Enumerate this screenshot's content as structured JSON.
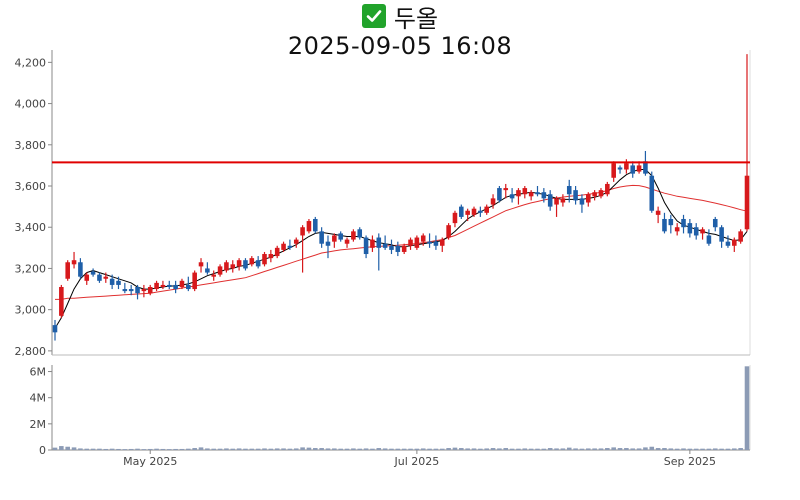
{
  "title": {
    "name": "두올",
    "timestamp": "2025-09-05 16:08",
    "icon": "check-mark-icon"
  },
  "colors": {
    "up": "#d7191c",
    "down": "#1f5fa8",
    "ma_short": "#000000",
    "ma_long": "#e03030",
    "resistance_line": "#e00000",
    "volume": "#8c9bb5"
  },
  "chart_data": {
    "type": "candlestick",
    "price_axis": {
      "ylim": [
        2780,
        4260
      ],
      "ticks": [
        "2,800",
        "3,000",
        "3,200",
        "3,400",
        "3,600",
        "3,800",
        "4,000",
        "4,200"
      ],
      "tick_values": [
        2800,
        3000,
        3200,
        3400,
        3600,
        3800,
        4000,
        4200
      ]
    },
    "volume_axis": {
      "ylim": [
        0,
        6500000
      ],
      "ticks": [
        "0",
        "2M",
        "4M",
        "6M"
      ],
      "tick_values": [
        0,
        2000000,
        4000000,
        6000000
      ]
    },
    "x_ticks": [
      {
        "label": "May 2025",
        "index": 15
      },
      {
        "label": "Jul 2025",
        "index": 57
      },
      {
        "label": "Sep 2025",
        "index": 100
      }
    ],
    "horizontal_line": 3715,
    "candles": [
      [
        2925,
        2950,
        2850,
        2890
      ],
      [
        2970,
        3120,
        2960,
        3110
      ],
      [
        3150,
        3240,
        3140,
        3230
      ],
      [
        3220,
        3280,
        3200,
        3240
      ],
      [
        3230,
        3250,
        3150,
        3160
      ],
      [
        3140,
        3180,
        3120,
        3170
      ],
      [
        3185,
        3200,
        3160,
        3170
      ],
      [
        3170,
        3180,
        3130,
        3140
      ],
      [
        3150,
        3180,
        3130,
        3160
      ],
      [
        3150,
        3170,
        3100,
        3120
      ],
      [
        3140,
        3160,
        3100,
        3120
      ],
      [
        3100,
        3130,
        3080,
        3090
      ],
      [
        3100,
        3120,
        3070,
        3090
      ],
      [
        3110,
        3120,
        3050,
        3080
      ],
      [
        3090,
        3120,
        3060,
        3100
      ],
      [
        3080,
        3120,
        3070,
        3110
      ],
      [
        3100,
        3140,
        3090,
        3130
      ],
      [
        3110,
        3140,
        3100,
        3120
      ],
      [
        3120,
        3140,
        3100,
        3110
      ],
      [
        3120,
        3140,
        3080,
        3100
      ],
      [
        3110,
        3150,
        3100,
        3140
      ],
      [
        3120,
        3160,
        3090,
        3100
      ],
      [
        3100,
        3190,
        3090,
        3180
      ],
      [
        3210,
        3250,
        3180,
        3230
      ],
      [
        3200,
        3230,
        3170,
        3180
      ],
      [
        3160,
        3190,
        3140,
        3170
      ],
      [
        3170,
        3220,
        3160,
        3210
      ],
      [
        3190,
        3240,
        3180,
        3230
      ],
      [
        3200,
        3240,
        3180,
        3220
      ],
      [
        3210,
        3250,
        3190,
        3240
      ],
      [
        3240,
        3250,
        3190,
        3200
      ],
      [
        3220,
        3260,
        3210,
        3250
      ],
      [
        3240,
        3260,
        3200,
        3210
      ],
      [
        3220,
        3280,
        3210,
        3270
      ],
      [
        3250,
        3290,
        3230,
        3270
      ],
      [
        3260,
        3310,
        3250,
        3300
      ],
      [
        3290,
        3330,
        3280,
        3320
      ],
      [
        3310,
        3340,
        3290,
        3300
      ],
      [
        3320,
        3350,
        3300,
        3340
      ],
      [
        3360,
        3410,
        3180,
        3400
      ],
      [
        3380,
        3440,
        3370,
        3430
      ],
      [
        3440,
        3450,
        3370,
        3380
      ],
      [
        3380,
        3400,
        3300,
        3320
      ],
      [
        3330,
        3360,
        3250,
        3310
      ],
      [
        3330,
        3370,
        3300,
        3360
      ],
      [
        3370,
        3380,
        3330,
        3340
      ],
      [
        3320,
        3350,
        3300,
        3340
      ],
      [
        3340,
        3390,
        3330,
        3380
      ],
      [
        3390,
        3400,
        3340,
        3350
      ],
      [
        3350,
        3360,
        3250,
        3270
      ],
      [
        3300,
        3360,
        3280,
        3340
      ],
      [
        3350,
        3370,
        3190,
        3300
      ],
      [
        3320,
        3360,
        3290,
        3300
      ],
      [
        3310,
        3340,
        3270,
        3290
      ],
      [
        3310,
        3330,
        3260,
        3280
      ],
      [
        3280,
        3320,
        3270,
        3310
      ],
      [
        3310,
        3350,
        3290,
        3340
      ],
      [
        3300,
        3360,
        3290,
        3350
      ],
      [
        3330,
        3370,
        3310,
        3360
      ],
      [
        3330,
        3370,
        3300,
        3320
      ],
      [
        3330,
        3360,
        3290,
        3310
      ],
      [
        3310,
        3350,
        3280,
        3340
      ],
      [
        3350,
        3420,
        3340,
        3410
      ],
      [
        3420,
        3480,
        3400,
        3470
      ],
      [
        3500,
        3510,
        3440,
        3450
      ],
      [
        3460,
        3490,
        3430,
        3480
      ],
      [
        3460,
        3500,
        3450,
        3490
      ],
      [
        3480,
        3500,
        3450,
        3470
      ],
      [
        3470,
        3510,
        3460,
        3500
      ],
      [
        3510,
        3560,
        3490,
        3540
      ],
      [
        3590,
        3600,
        3520,
        3530
      ],
      [
        3580,
        3610,
        3540,
        3590
      ],
      [
        3560,
        3590,
        3520,
        3540
      ],
      [
        3550,
        3590,
        3510,
        3580
      ],
      [
        3560,
        3600,
        3540,
        3590
      ],
      [
        3550,
        3580,
        3530,
        3570
      ],
      [
        3570,
        3600,
        3550,
        3560
      ],
      [
        3570,
        3590,
        3520,
        3540
      ],
      [
        3560,
        3580,
        3480,
        3500
      ],
      [
        3510,
        3550,
        3450,
        3540
      ],
      [
        3520,
        3560,
        3500,
        3540
      ],
      [
        3600,
        3630,
        3520,
        3560
      ],
      [
        3580,
        3600,
        3510,
        3530
      ],
      [
        3540,
        3560,
        3470,
        3510
      ],
      [
        3520,
        3570,
        3500,
        3560
      ],
      [
        3550,
        3580,
        3530,
        3570
      ],
      [
        3550,
        3590,
        3540,
        3580
      ],
      [
        3560,
        3620,
        3550,
        3610
      ],
      [
        3640,
        3720,
        3620,
        3710
      ],
      [
        3690,
        3700,
        3660,
        3680
      ],
      [
        3680,
        3730,
        3660,
        3710
      ],
      [
        3700,
        3720,
        3640,
        3660
      ],
      [
        3670,
        3720,
        3660,
        3700
      ],
      [
        3720,
        3770,
        3650,
        3660
      ],
      [
        3650,
        3670,
        3470,
        3480
      ],
      [
        3460,
        3500,
        3420,
        3480
      ],
      [
        3440,
        3470,
        3370,
        3380
      ],
      [
        3440,
        3460,
        3370,
        3410
      ],
      [
        3380,
        3420,
        3360,
        3400
      ],
      [
        3440,
        3460,
        3370,
        3400
      ],
      [
        3420,
        3440,
        3350,
        3370
      ],
      [
        3400,
        3420,
        3340,
        3360
      ],
      [
        3370,
        3400,
        3340,
        3390
      ],
      [
        3360,
        3390,
        3310,
        3320
      ],
      [
        3440,
        3450,
        3380,
        3400
      ],
      [
        3400,
        3410,
        3300,
        3330
      ],
      [
        3330,
        3360,
        3300,
        3310
      ],
      [
        3310,
        3350,
        3280,
        3340
      ],
      [
        3330,
        3390,
        3320,
        3380
      ],
      [
        3390,
        4240,
        3380,
        3650
      ]
    ],
    "ma_short": [
      2910,
      2960,
      3030,
      3100,
      3150,
      3180,
      3190,
      3180,
      3170,
      3160,
      3150,
      3140,
      3130,
      3110,
      3100,
      3100,
      3105,
      3110,
      3115,
      3115,
      3120,
      3125,
      3135,
      3150,
      3165,
      3175,
      3185,
      3195,
      3200,
      3210,
      3215,
      3225,
      3235,
      3245,
      3255,
      3270,
      3285,
      3300,
      3315,
      3335,
      3355,
      3370,
      3375,
      3370,
      3365,
      3360,
      3355,
      3355,
      3355,
      3345,
      3335,
      3325,
      3320,
      3315,
      3305,
      3305,
      3310,
      3315,
      3320,
      3325,
      3330,
      3335,
      3355,
      3380,
      3410,
      3440,
      3460,
      3475,
      3490,
      3505,
      3525,
      3545,
      3555,
      3560,
      3565,
      3570,
      3565,
      3560,
      3550,
      3540,
      3535,
      3535,
      3535,
      3535,
      3540,
      3545,
      3555,
      3570,
      3600,
      3630,
      3655,
      3670,
      3680,
      3680,
      3650,
      3590,
      3520,
      3470,
      3430,
      3410,
      3400,
      3390,
      3380,
      3370,
      3365,
      3355,
      3345,
      3335,
      3340,
      3380
    ],
    "ma_long": [
      3050,
      3050,
      3055,
      3055,
      3058,
      3060,
      3062,
      3064,
      3066,
      3068,
      3070,
      3072,
      3074,
      3076,
      3078,
      3080,
      3085,
      3090,
      3095,
      3100,
      3105,
      3110,
      3115,
      3120,
      3125,
      3130,
      3135,
      3140,
      3145,
      3150,
      3155,
      3165,
      3175,
      3185,
      3195,
      3205,
      3215,
      3225,
      3235,
      3245,
      3255,
      3265,
      3275,
      3280,
      3285,
      3290,
      3293,
      3296,
      3299,
      3302,
      3305,
      3307,
      3309,
      3311,
      3313,
      3315,
      3318,
      3321,
      3325,
      3330,
      3335,
      3340,
      3350,
      3360,
      3375,
      3390,
      3405,
      3420,
      3435,
      3450,
      3465,
      3480,
      3490,
      3500,
      3510,
      3518,
      3525,
      3532,
      3538,
      3542,
      3546,
      3550,
      3553,
      3556,
      3560,
      3564,
      3570,
      3578,
      3588,
      3595,
      3600,
      3603,
      3602,
      3595,
      3585,
      3575,
      3565,
      3558,
      3550,
      3545,
      3540,
      3535,
      3530,
      3524,
      3517,
      3510,
      3502,
      3494,
      3485,
      3478
    ],
    "volumes": [
      0.18,
      0.3,
      0.25,
      0.2,
      0.12,
      0.1,
      0.1,
      0.1,
      0.08,
      0.1,
      0.08,
      0.07,
      0.08,
      0.1,
      0.07,
      0.08,
      0.1,
      0.08,
      0.07,
      0.08,
      0.08,
      0.1,
      0.15,
      0.2,
      0.12,
      0.1,
      0.1,
      0.12,
      0.1,
      0.12,
      0.1,
      0.1,
      0.1,
      0.12,
      0.1,
      0.12,
      0.12,
      0.1,
      0.12,
      0.2,
      0.18,
      0.15,
      0.15,
      0.12,
      0.12,
      0.1,
      0.1,
      0.12,
      0.1,
      0.12,
      0.1,
      0.15,
      0.12,
      0.1,
      0.1,
      0.1,
      0.1,
      0.1,
      0.12,
      0.1,
      0.1,
      0.1,
      0.15,
      0.18,
      0.15,
      0.12,
      0.12,
      0.1,
      0.12,
      0.15,
      0.12,
      0.15,
      0.1,
      0.1,
      0.12,
      0.1,
      0.1,
      0.1,
      0.15,
      0.12,
      0.12,
      0.18,
      0.12,
      0.1,
      0.12,
      0.12,
      0.12,
      0.15,
      0.2,
      0.15,
      0.15,
      0.12,
      0.12,
      0.2,
      0.25,
      0.15,
      0.15,
      0.12,
      0.1,
      0.12,
      0.1,
      0.1,
      0.1,
      0.1,
      0.12,
      0.1,
      0.1,
      0.12,
      0.15,
      6.4
    ]
  }
}
